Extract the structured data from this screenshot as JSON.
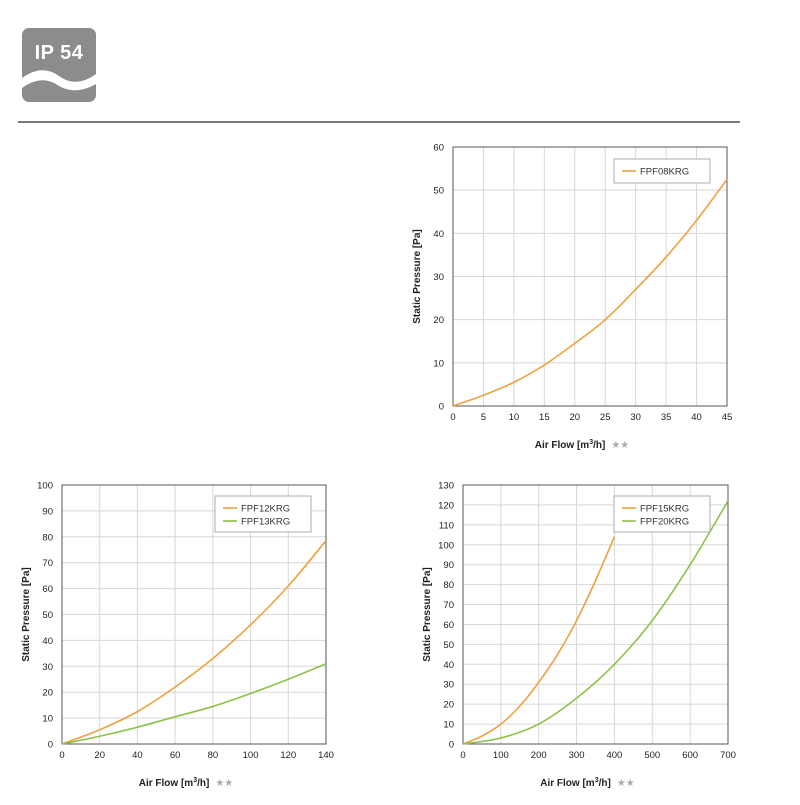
{
  "badge": {
    "label": "IP 54",
    "color": "#8c8c8c"
  },
  "colors": {
    "orange": "#f0a040",
    "green": "#8cc24a",
    "grid": "#d8d8d8"
  },
  "axis_unit_superscript": "3",
  "chart_data": [
    {
      "type": "line",
      "xlabel": "Air Flow [m³/h]",
      "xlabel_prefix": "Air Flow [m",
      "xlabel_suffix": "/h]",
      "xlabel_stars": "★★",
      "ylabel": "Static Pressure [Pa]",
      "xlim": [
        0,
        45
      ],
      "ylim": [
        0,
        60
      ],
      "xticks": [
        0,
        5,
        10,
        15,
        20,
        25,
        30,
        35,
        40,
        45
      ],
      "yticks": [
        0,
        10,
        20,
        30,
        40,
        50,
        60
      ],
      "grid": true,
      "legend": "top-right",
      "series": [
        {
          "name": "FPF08KRG",
          "color": "#f0a040",
          "x": [
            0,
            5,
            10,
            15,
            20,
            25,
            30,
            35,
            40,
            45
          ],
          "y": [
            0,
            2.5,
            5.5,
            9.5,
            14.5,
            20,
            27,
            34.5,
            43,
            52.5
          ]
        }
      ]
    },
    {
      "type": "line",
      "xlabel": "Air Flow [m³/h]",
      "xlabel_prefix": "Air Flow [m",
      "xlabel_suffix": "/h]",
      "xlabel_stars": "★★",
      "ylabel": "Static Pressure [Pa]",
      "xlim": [
        0,
        140
      ],
      "ylim": [
        0,
        100
      ],
      "xticks": [
        0,
        20,
        40,
        60,
        80,
        100,
        120,
        140
      ],
      "yticks": [
        0,
        10,
        20,
        30,
        40,
        50,
        60,
        70,
        80,
        90,
        100
      ],
      "grid": true,
      "legend": "top-right",
      "series": [
        {
          "name": "FPF12KRG",
          "color": "#f0a040",
          "x": [
            0,
            20,
            40,
            60,
            80,
            100,
            120,
            140
          ],
          "y": [
            0,
            5.5,
            12.5,
            22,
            33,
            46,
            61,
            78.5
          ]
        },
        {
          "name": "FPF13KRG",
          "color": "#8cc24a",
          "x": [
            0,
            20,
            40,
            60,
            80,
            100,
            120,
            140
          ],
          "y": [
            0,
            3,
            6.5,
            10.5,
            14.5,
            19.5,
            25,
            31
          ]
        }
      ]
    },
    {
      "type": "line",
      "xlabel": "Air Flow [m³/h]",
      "xlabel_prefix": "Air Flow [m",
      "xlabel_suffix": "/h]",
      "xlabel_stars": "★★",
      "ylabel": "Static Pressure [Pa]",
      "xlim": [
        0,
        700
      ],
      "ylim": [
        0,
        130
      ],
      "xticks": [
        0,
        100,
        200,
        300,
        400,
        500,
        600,
        700
      ],
      "yticks": [
        0,
        10,
        20,
        30,
        40,
        50,
        60,
        70,
        80,
        90,
        100,
        110,
        120,
        130
      ],
      "grid": true,
      "legend": "top-right",
      "series": [
        {
          "name": "FPF15KRG",
          "color": "#f0a040",
          "x": [
            0,
            50,
            100,
            150,
            200,
            250,
            300,
            350,
            400
          ],
          "y": [
            0,
            4,
            10,
            19,
            31,
            45,
            62,
            82,
            104
          ]
        },
        {
          "name": "FPF20KRG",
          "color": "#8cc24a",
          "x": [
            0,
            100,
            200,
            300,
            400,
            500,
            600,
            700
          ],
          "y": [
            0,
            3,
            10,
            23,
            40,
            62,
            90,
            122
          ]
        }
      ]
    }
  ]
}
